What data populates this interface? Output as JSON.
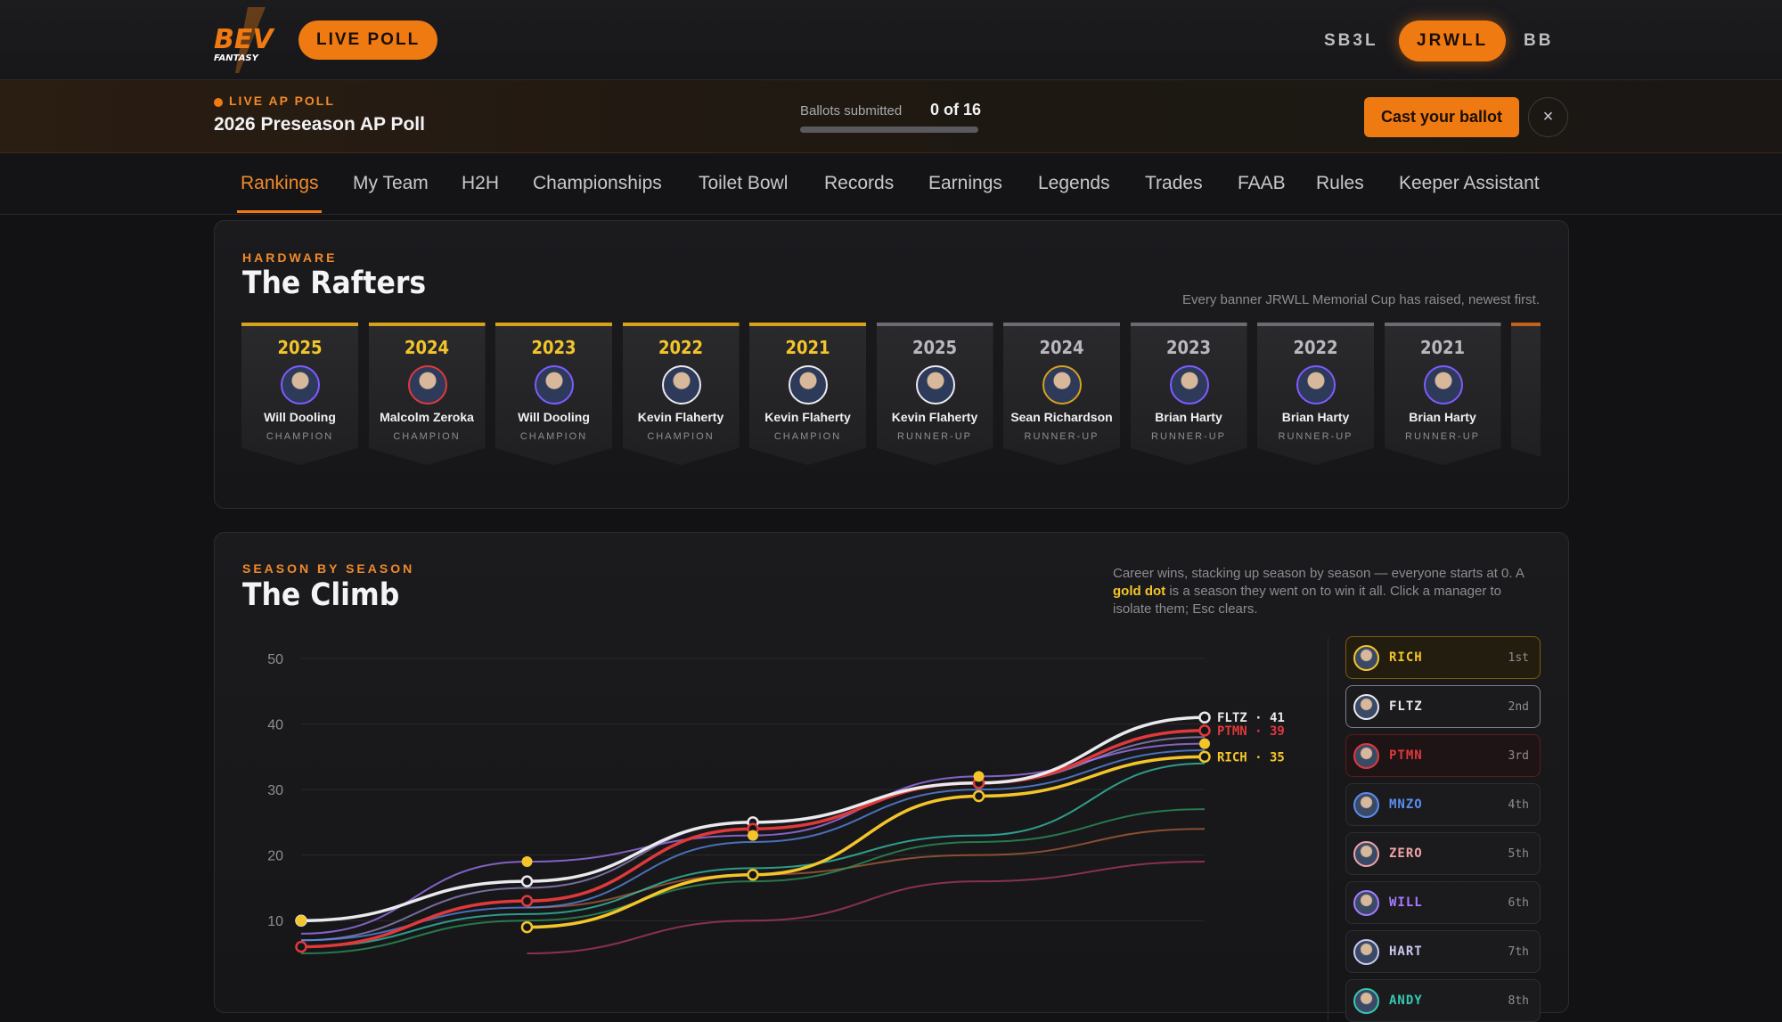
{
  "header": {
    "logo_text": "BEV",
    "logo_sub": "FANTASY",
    "live_poll_label": "LIVE POLL",
    "leagues": [
      {
        "label": "SB3L",
        "active": false
      },
      {
        "label": "JRWLL",
        "active": true
      },
      {
        "label": "BB",
        "active": false
      }
    ]
  },
  "poll": {
    "kicker": "LIVE AP POLL",
    "title": "2026 Preseason AP Poll",
    "ballots_label": "Ballots submitted",
    "ballots_count": "0 of 16",
    "ballots_progress": 0,
    "cast_label": "Cast your ballot",
    "close_label": "×"
  },
  "nav": {
    "tabs": [
      "Rankings",
      "My Team",
      "H2H",
      "Championships",
      "Toilet Bowl",
      "Records",
      "Earnings",
      "Legends",
      "Trades",
      "FAAB",
      "Rules",
      "Keeper Assistant"
    ],
    "active": "Rankings"
  },
  "rafters": {
    "kicker": "HARDWARE",
    "title": "The Rafters",
    "note": "Every banner JRWLL Memorial Cup has raised, newest first.",
    "banners": [
      {
        "year": "2025",
        "name": "Will Dooling",
        "role": "CHAMPION",
        "ring": "purple"
      },
      {
        "year": "2024",
        "name": "Malcolm Zeroka",
        "role": "CHAMPION",
        "ring": "red"
      },
      {
        "year": "2023",
        "name": "Will Dooling",
        "role": "CHAMPION",
        "ring": "purple"
      },
      {
        "year": "2022",
        "name": "Kevin Flaherty",
        "role": "CHAMPION",
        "ring": "white"
      },
      {
        "year": "2021",
        "name": "Kevin Flaherty",
        "role": "CHAMPION",
        "ring": "white"
      },
      {
        "year": "2025",
        "name": "Kevin Flaherty",
        "role": "RUNNER-UP",
        "ring": "white"
      },
      {
        "year": "2024",
        "name": "Sean Richardson",
        "role": "RUNNER-UP",
        "ring": "gold"
      },
      {
        "year": "2023",
        "name": "Brian Harty",
        "role": "RUNNER-UP",
        "ring": "purple"
      },
      {
        "year": "2022",
        "name": "Brian Harty",
        "role": "RUNNER-UP",
        "ring": "purple"
      },
      {
        "year": "2021",
        "name": "Brian Harty",
        "role": "RUNNER-UP",
        "ring": "purple"
      }
    ]
  },
  "climb": {
    "kicker": "SEASON BY SEASON",
    "title": "The Climb",
    "note_before": "Career wins, stacking up season by season — everyone starts at 0. A ",
    "note_gold": "gold dot",
    "note_after": " is a season they went on to win it all. Click a manager to isolate them; Esc clears.",
    "legend": [
      {
        "code": "RICH",
        "rank": "1st",
        "color": "#f4c52a"
      },
      {
        "code": "FLTZ",
        "rank": "2nd",
        "color": "#e9e9ee"
      },
      {
        "code": "PTMN",
        "rank": "3rd",
        "color": "#e0393b"
      },
      {
        "code": "MNZO",
        "rank": "4th",
        "color": "#5b8def"
      },
      {
        "code": "ZERO",
        "rank": "5th",
        "color": "#f0a3a8"
      },
      {
        "code": "WILL",
        "rank": "6th",
        "color": "#a77bff"
      },
      {
        "code": "HART",
        "rank": "7th",
        "color": "#c9c9f2"
      },
      {
        "code": "ANDY",
        "rank": "8th",
        "color": "#35c9b0"
      }
    ]
  },
  "chart_data": {
    "type": "line",
    "ylabel": "",
    "xlabel": "",
    "ylim": [
      5,
      50
    ],
    "yticks": [
      10,
      20,
      30,
      40,
      50
    ],
    "x": [
      0,
      1,
      2,
      3,
      4
    ],
    "series": [
      {
        "name": "FLTZ",
        "color": "#e9e9ee",
        "values": [
          10,
          16,
          25,
          31,
          41
        ],
        "wins": [
          false,
          false,
          false,
          false,
          false
        ],
        "dots": true,
        "end_label": "FLTZ · 41"
      },
      {
        "name": "PTMN",
        "color": "#e0393b",
        "values": [
          6,
          13,
          24,
          31,
          39
        ],
        "wins": [
          false,
          false,
          false,
          false,
          false
        ],
        "dots": true,
        "end_label": "PTMN · 39"
      },
      {
        "name": "RICH",
        "color": "#f4c52a",
        "values": [
          null,
          9,
          17,
          29,
          35
        ],
        "wins": [
          false,
          false,
          false,
          false,
          false
        ],
        "dots": true,
        "end_label": "RICH · 35"
      },
      {
        "name": "WILL",
        "color": "#a77bff",
        "values": [
          8,
          19,
          23,
          32,
          37
        ],
        "wins": [
          true,
          true,
          true,
          true,
          true
        ],
        "dots": false,
        "end_label": ""
      },
      {
        "name": "MNZO",
        "color": "#5b8def",
        "values": [
          7,
          12,
          22,
          30,
          36
        ],
        "wins": [
          false,
          false,
          false,
          false,
          false
        ],
        "dots": false,
        "end_label": ""
      },
      {
        "name": "HART",
        "color": "#9a8ac8",
        "values": [
          7,
          15,
          25,
          31,
          38
        ],
        "wins": [
          false,
          false,
          false,
          false,
          false
        ],
        "dots": false,
        "end_label": ""
      },
      {
        "name": "ANDY",
        "color": "#35c9b0",
        "values": [
          6,
          11,
          18,
          23,
          34
        ],
        "wins": [
          false,
          false,
          false,
          false,
          false
        ],
        "dots": false,
        "end_label": ""
      },
      {
        "name": "",
        "color": "#2e9a5e",
        "values": [
          5,
          10,
          16,
          22,
          27
        ],
        "wins": [
          false,
          false,
          false,
          false,
          false
        ],
        "dots": false,
        "end_label": ""
      },
      {
        "name": "",
        "color": "#b0603a",
        "values": [
          null,
          12,
          17,
          20,
          24
        ],
        "wins": [
          false,
          false,
          false,
          false,
          false
        ],
        "dots": false,
        "end_label": ""
      },
      {
        "name": "",
        "color": "#b0386a",
        "values": [
          null,
          5,
          10,
          16,
          19
        ],
        "wins": [
          false,
          false,
          false,
          false,
          false
        ],
        "dots": false,
        "end_label": ""
      }
    ],
    "gold_dots": [
      {
        "x": 0,
        "y": 10
      },
      {
        "x": 1,
        "y": 19
      },
      {
        "x": 2,
        "y": 23
      },
      {
        "x": 3,
        "y": 32
      },
      {
        "x": 4,
        "y": 37
      }
    ]
  }
}
